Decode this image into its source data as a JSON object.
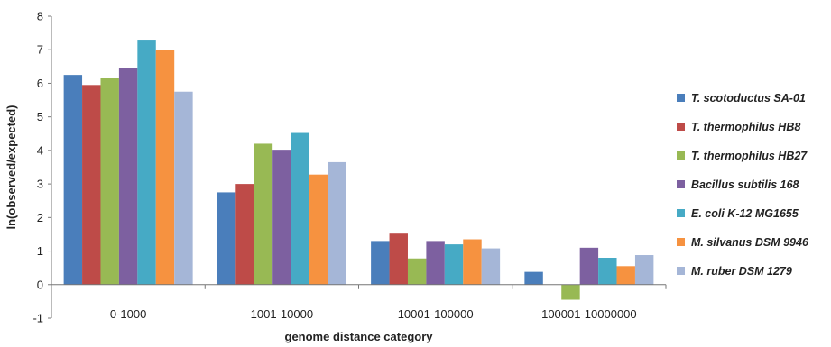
{
  "chart_data": {
    "type": "bar",
    "xlabel": "genome distance category",
    "ylabel": "ln(observed/expected)",
    "ylim": [
      -1,
      8
    ],
    "yticks": [
      -1,
      0,
      1,
      2,
      3,
      4,
      5,
      6,
      7,
      8
    ],
    "ytick_labels": [
      "-1",
      "0",
      "1",
      "2",
      "3",
      "4",
      "5",
      "6",
      "7",
      "8"
    ],
    "categories": [
      "0-1000",
      "1001-10000",
      "10001-100000",
      "100001-10000000"
    ],
    "grid": false,
    "legend_position": "right",
    "series": [
      {
        "name": "T. scotoductus SA-01",
        "color": "#4a7ebb",
        "values": [
          6.25,
          2.75,
          1.3,
          0.38
        ]
      },
      {
        "name": "T. thermophilus HB8",
        "color": "#be4b48",
        "values": [
          5.95,
          3.0,
          1.52,
          null
        ]
      },
      {
        "name": "T. thermophilus HB27",
        "color": "#98b954",
        "values": [
          6.15,
          4.2,
          0.78,
          -0.45
        ]
      },
      {
        "name": "Bacillus subtilis 168",
        "color": "#7d60a0",
        "values": [
          6.45,
          4.02,
          1.3,
          1.1
        ]
      },
      {
        "name": "E. coli K-12 MG1655",
        "color": "#46aac5",
        "values": [
          7.3,
          4.52,
          1.2,
          0.8
        ]
      },
      {
        "name": "M. silvanus DSM 9946",
        "color": "#f69240",
        "values": [
          7.0,
          3.28,
          1.35,
          0.55
        ]
      },
      {
        "name": "M. ruber DSM 1279",
        "color": "#a5b6d7",
        "values": [
          5.75,
          3.65,
          1.08,
          0.88
        ]
      }
    ]
  }
}
